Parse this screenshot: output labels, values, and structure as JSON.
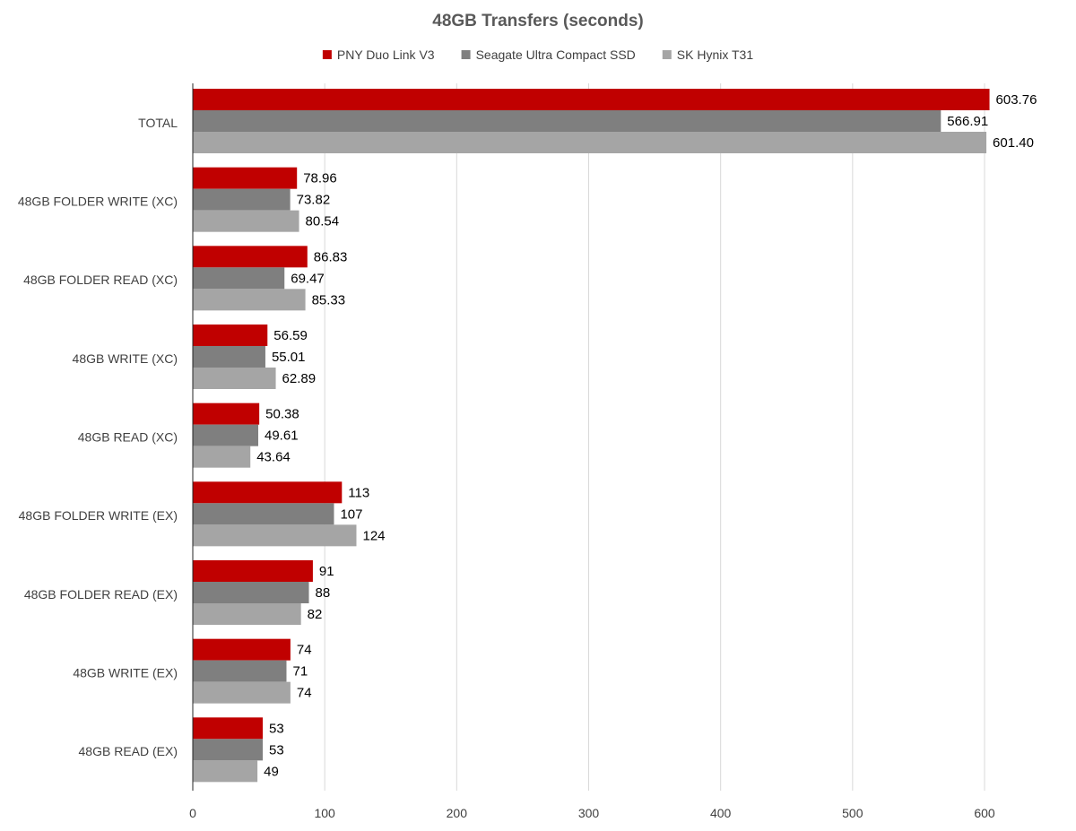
{
  "chart_data": {
    "type": "bar",
    "orientation": "horizontal",
    "title": "48GB Transfers (seconds)",
    "xlabel": "",
    "ylabel": "",
    "xlim": [
      0,
      600
    ],
    "x_ticks": [
      0,
      100,
      200,
      300,
      400,
      500,
      600
    ],
    "grid": true,
    "legend_position": "top",
    "categories": [
      "TOTAL",
      "48GB FOLDER WRITE (XC)",
      "48GB FOLDER READ (XC)",
      "48GB WRITE (XC)",
      "48GB READ (XC)",
      "48GB FOLDER WRITE (EX)",
      "48GB FOLDER READ (EX)",
      "48GB WRITE (EX)",
      "48GB READ (EX)"
    ],
    "series": [
      {
        "name": "PNY Duo Link V3",
        "color": "#c00000",
        "values": [
          603.76,
          78.96,
          86.83,
          56.59,
          50.38,
          113,
          91,
          74,
          53
        ],
        "labels": [
          "603.76",
          "78.96",
          "86.83",
          "56.59",
          "50.38",
          "113",
          "91",
          "74",
          "53"
        ]
      },
      {
        "name": "Seagate Ultra Compact SSD",
        "color": "#7f7f7f",
        "values": [
          566.91,
          73.82,
          69.47,
          55.01,
          49.61,
          107,
          88,
          71,
          53
        ],
        "labels": [
          "566.91",
          "73.82",
          "69.47",
          "55.01",
          "49.61",
          "107",
          "88",
          "71",
          "53"
        ]
      },
      {
        "name": "SK Hynix  T31",
        "color": "#a5a5a5",
        "values": [
          601.4,
          80.54,
          85.33,
          62.89,
          43.64,
          124,
          82,
          74,
          49
        ],
        "labels": [
          "601.40",
          "80.54",
          "85.33",
          "62.89",
          "43.64",
          "124",
          "82",
          "74",
          "49"
        ]
      }
    ]
  }
}
